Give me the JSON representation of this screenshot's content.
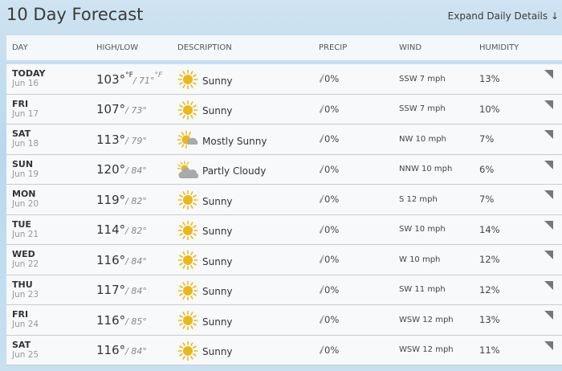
{
  "title": "10 Day Forecast",
  "expand_label": "Expand Daily Details ↓",
  "columns": [
    "DAY",
    "HIGH/LOW",
    "DESCRIPTION",
    "PRECIP",
    "WIND",
    "HUMIDITY"
  ],
  "rows": [
    {
      "day": "TODAY",
      "date": "Jun 16",
      "high": "103",
      "low": "71",
      "unit": "°F",
      "icon": "sunny-icon",
      "desc": "Sunny",
      "precip": "0%",
      "wind": "SSW 7 mph",
      "humidity": "13%"
    },
    {
      "day": "FRI",
      "date": "Jun 17",
      "high": "107",
      "low": "73",
      "icon": "sunny-icon",
      "desc": "Sunny",
      "precip": "0%",
      "wind": "SSW 7 mph",
      "humidity": "10%"
    },
    {
      "day": "SAT",
      "date": "Jun 18",
      "high": "113",
      "low": "79",
      "icon": "mostly-sunny-icon",
      "desc": "Mostly Sunny",
      "precip": "0%",
      "wind": "NW 10 mph",
      "humidity": "7%"
    },
    {
      "day": "SUN",
      "date": "Jun 19",
      "high": "120",
      "low": "84",
      "icon": "partly-cloudy-icon",
      "desc": "Partly Cloudy",
      "precip": "0%",
      "wind": "NNW 10 mph",
      "humidity": "6%"
    },
    {
      "day": "MON",
      "date": "Jun 20",
      "high": "119",
      "low": "82",
      "icon": "sunny-icon",
      "desc": "Sunny",
      "precip": "0%",
      "wind": "S 12 mph",
      "humidity": "7%"
    },
    {
      "day": "TUE",
      "date": "Jun 21",
      "high": "114",
      "low": "82",
      "icon": "sunny-icon",
      "desc": "Sunny",
      "precip": "0%",
      "wind": "SW 10 mph",
      "humidity": "14%"
    },
    {
      "day": "WED",
      "date": "Jun 22",
      "high": "116",
      "low": "84",
      "icon": "sunny-icon",
      "desc": "Sunny",
      "precip": "0%",
      "wind": "W 10 mph",
      "humidity": "12%"
    },
    {
      "day": "THU",
      "date": "Jun 23",
      "high": "117",
      "low": "84",
      "icon": "sunny-icon",
      "desc": "Sunny",
      "precip": "0%",
      "wind": "SW 11 mph",
      "humidity": "12%"
    },
    {
      "day": "FRI",
      "date": "Jun 24",
      "high": "116",
      "low": "85",
      "icon": "sunny-icon",
      "desc": "Sunny",
      "precip": "0%",
      "wind": "WSW 12 mph",
      "humidity": "13%"
    },
    {
      "day": "SAT",
      "date": "Jun 25",
      "high": "116",
      "low": "84",
      "icon": "sunny-icon",
      "desc": "Sunny",
      "precip": "0%",
      "wind": "WSW 12 mph",
      "humidity": "11%"
    }
  ],
  "colors": {
    "sun": "#e8b823",
    "cloud": "#a9a9a9",
    "background": "#c5def0"
  }
}
